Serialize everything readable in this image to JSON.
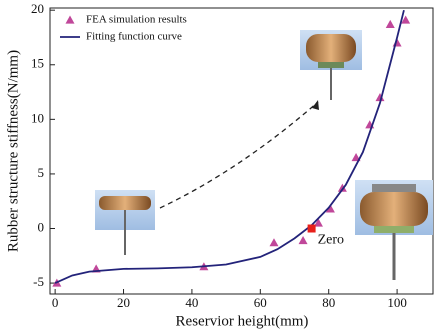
{
  "chart_data": {
    "type": "combo",
    "x_label": "Reservior height(mm)",
    "y_label": "Rubber structure stiffness(N/mm)",
    "xlim": [
      -1.5,
      110.5
    ],
    "ylim": [
      -6,
      20.2
    ],
    "xticks": [
      0,
      20,
      40,
      60,
      80,
      100
    ],
    "yticks": [
      -5,
      0,
      5,
      10,
      15,
      20
    ],
    "legend": "upper left",
    "series": [
      {
        "name": "FEA simulation results",
        "type": "scatter",
        "color": "#c0479a",
        "x": [
          0.5,
          12,
          43.5,
          64,
          72.5,
          77,
          80.5,
          84,
          88,
          92,
          95,
          98,
          100,
          102.5
        ],
        "values": [
          -5.0,
          -3.7,
          -3.5,
          -1.3,
          -1.1,
          0.5,
          1.8,
          3.7,
          6.5,
          9.5,
          12,
          18.7,
          17,
          19.1
        ]
      },
      {
        "name": "Fitting function curve",
        "type": "line",
        "color": "#23237a",
        "x": [
          0,
          5,
          10,
          20,
          30,
          40,
          50,
          60,
          65,
          70,
          75,
          80,
          85,
          90,
          95,
          100,
          102
        ],
        "values": [
          -5,
          -4.3,
          -3.95,
          -3.7,
          -3.65,
          -3.55,
          -3.3,
          -2.6,
          -1.9,
          -0.9,
          0.3,
          1.9,
          4.0,
          7.0,
          11.5,
          17.5,
          20
        ]
      }
    ],
    "annotation": {
      "text": "Zero",
      "x": 75,
      "y": 0,
      "color": "#e8201a"
    }
  }
}
